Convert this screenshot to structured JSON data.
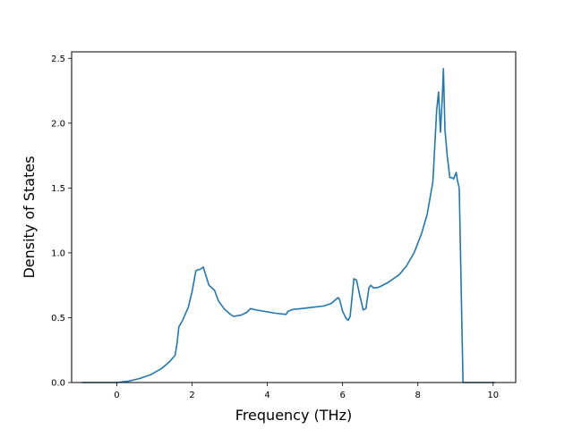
{
  "chart_data": {
    "type": "line",
    "title": "",
    "xlabel": "Frequency (THz)",
    "ylabel": "Density of States",
    "xlim": [
      -1.2,
      10.6
    ],
    "ylim": [
      0,
      2.55
    ],
    "xticks": [
      0,
      2,
      4,
      6,
      8,
      10
    ],
    "yticks": [
      0.0,
      0.5,
      1.0,
      1.5,
      2.0,
      2.5
    ],
    "xtick_labels": [
      "0",
      "2",
      "4",
      "6",
      "8",
      "10"
    ],
    "ytick_labels": [
      "0.0",
      "0.5",
      "1.0",
      "1.5",
      "2.0",
      "2.5"
    ],
    "grid": false,
    "line_color": "#1f77b4",
    "series": [
      {
        "x": [
          -0.93,
          0.0,
          0.3,
          0.6,
          0.9,
          1.2,
          1.4,
          1.55,
          1.6,
          1.65,
          1.75,
          1.9,
          2.0,
          2.1,
          2.15,
          2.2,
          2.3,
          2.35,
          2.45,
          2.6,
          2.7,
          2.85,
          3.0,
          3.1,
          3.3,
          3.45,
          3.55,
          3.7,
          4.0,
          4.2,
          4.5,
          4.55,
          4.7,
          4.9,
          5.2,
          5.5,
          5.7,
          5.82,
          5.88,
          5.92,
          6.0,
          6.1,
          6.15,
          6.2,
          6.25,
          6.3,
          6.37,
          6.45,
          6.55,
          6.62,
          6.7,
          6.75,
          6.82,
          6.9,
          7.0,
          7.2,
          7.5,
          7.7,
          7.9,
          8.1,
          8.25,
          8.4,
          8.5,
          8.55,
          8.6,
          8.65,
          8.68,
          8.72,
          8.78,
          8.85,
          8.9,
          8.95,
          9.02,
          9.05,
          9.1,
          9.2,
          9.25,
          10.05
        ],
        "y": [
          0.0,
          0.0,
          0.01,
          0.03,
          0.06,
          0.11,
          0.16,
          0.21,
          0.3,
          0.43,
          0.48,
          0.58,
          0.7,
          0.86,
          0.87,
          0.87,
          0.89,
          0.84,
          0.75,
          0.71,
          0.63,
          0.57,
          0.53,
          0.51,
          0.52,
          0.54,
          0.57,
          0.56,
          0.545,
          0.535,
          0.525,
          0.55,
          0.565,
          0.57,
          0.58,
          0.59,
          0.61,
          0.64,
          0.655,
          0.64,
          0.55,
          0.49,
          0.48,
          0.51,
          0.65,
          0.8,
          0.79,
          0.68,
          0.56,
          0.57,
          0.73,
          0.75,
          0.73,
          0.73,
          0.74,
          0.77,
          0.83,
          0.9,
          1.0,
          1.15,
          1.3,
          1.55,
          2.1,
          2.24,
          1.93,
          2.2,
          2.42,
          1.95,
          1.75,
          1.58,
          1.58,
          1.57,
          1.62,
          1.56,
          1.5,
          0.0,
          0.0,
          0.0
        ]
      }
    ]
  }
}
